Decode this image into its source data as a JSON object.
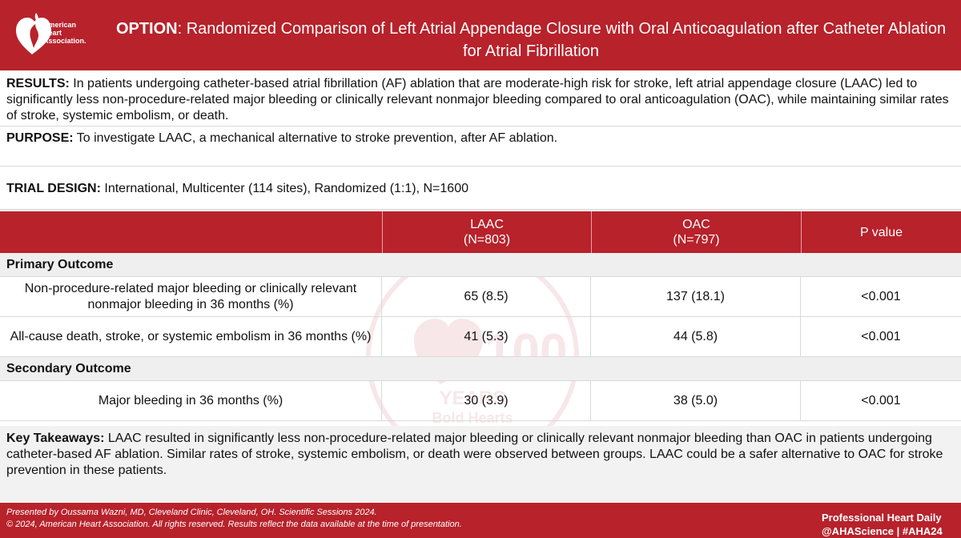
{
  "header": {
    "org_name_line1": "American",
    "org_name_line2": "Heart",
    "org_name_line3": "Association.",
    "title_label": "OPTION",
    "title_text": ":  Randomized Comparison of Left Atrial Appendage Closure with Oral Anticoagulation after Catheter Ablation for Atrial Fibrillation"
  },
  "results": {
    "label": "RESULTS:",
    "text": "In patients undergoing catheter-based atrial fibrillation (AF) ablation that are moderate-high risk for stroke, left atrial appendage closure (LAAC) led to significantly less non-procedure-related major bleeding or clinically relevant nonmajor bleeding compared to oral anticoagulation (OAC), while maintaining similar rates of stroke, systemic embolism, or death."
  },
  "purpose": {
    "label": "PURPOSE:",
    "text": "To investigate LAAC, a mechanical alternative to stroke prevention, after AF ablation."
  },
  "design": {
    "label": "TRIAL DESIGN:",
    "text": "International, Multicenter (114 sites), Randomized (1:1), N=1600"
  },
  "table": {
    "columns": [
      {
        "line1": "LAAC",
        "line2": "(N=803)"
      },
      {
        "line1": "OAC",
        "line2": "(N=797)"
      },
      {
        "line1": "P value",
        "line2": ""
      }
    ],
    "primary_label": "Primary Outcome",
    "primary_rows": [
      {
        "outcome": "Non-procedure-related major bleeding or clinically relevant nonmajor bleeding in 36 months (%)",
        "laac": "65 (8.5)",
        "oac": "137 (18.1)",
        "p": "<0.001"
      },
      {
        "outcome": "All-cause death, stroke, or systemic embolism in 36 months (%)",
        "laac": "41 (5.3)",
        "oac": "44 (5.8)",
        "p": "<0.001"
      }
    ],
    "secondary_label": "Secondary Outcome",
    "secondary_rows": [
      {
        "outcome": "Major bleeding in 36 months (%)",
        "laac": "30 (3.9)",
        "oac": "38 (5.0)",
        "p": "<0.001"
      }
    ]
  },
  "watermark": {
    "number": "100",
    "years": "YEARS",
    "tagline": "Bold Hearts"
  },
  "takeaways": {
    "label": "Key Takeaways:",
    "text": "LAAC resulted in significantly less non-procedure-related major bleeding or clinically relevant nonmajor bleeding than OAC in patients undergoing catheter-based AF ablation.  Similar rates of stroke, systemic embolism, or death were observed between groups.  LAAC could be a safer alternative to OAC for stroke prevention in these patients."
  },
  "footer": {
    "presenter": "Presented by  Oussama Wazni, MD, Cleveland Clinic, Cleveland, OH.   Scientific Sessions 2024.",
    "copyright": "© 2024, American Heart Association. All rights reserved.  Results reflect the data available at the time of presentation.",
    "brand_line1": "Professional Heart Daily",
    "brand_line2": "@AHAScience | #AHA24"
  },
  "colors": {
    "brand_red": "#b7222b",
    "group_row_bg": "#efefef",
    "takeaways_bg": "#f2f2f2"
  }
}
